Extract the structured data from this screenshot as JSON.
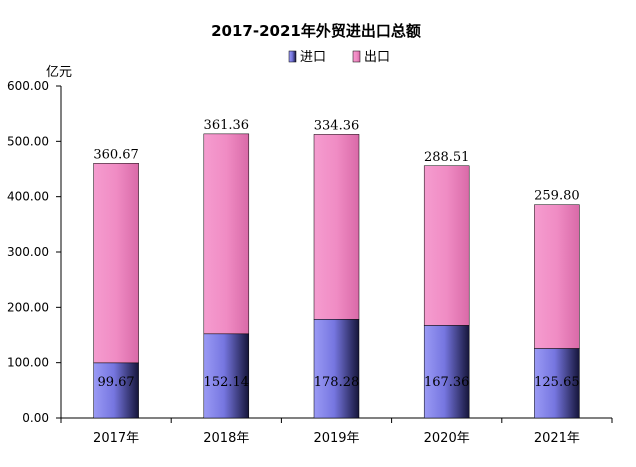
{
  "chart_data": {
    "type": "bar",
    "stacked": true,
    "title": "2017-2021年外贸进出口总额",
    "ylabel": "亿元",
    "xlabel": "",
    "categories": [
      "2017年",
      "2018年",
      "2019年",
      "2020年",
      "2021年"
    ],
    "series": [
      {
        "name": "进口",
        "values": [
          99.67,
          152.14,
          178.28,
          167.36,
          125.65
        ],
        "color": "#7c7ce8"
      },
      {
        "name": "出口",
        "values": [
          360.67,
          361.36,
          334.36,
          288.51,
          259.8
        ],
        "color": "#f08cc4"
      }
    ],
    "value_labels": [
      [
        "99.67",
        "152.14",
        "178.28",
        "167.36",
        "125.65"
      ],
      [
        "360.67",
        "361.36",
        "334.36",
        "288.51",
        "259.80"
      ]
    ],
    "ylim": [
      0,
      600
    ],
    "yticks": [
      "0.00",
      "100.00",
      "200.00",
      "300.00",
      "400.00",
      "500.00",
      "600.00"
    ],
    "legend_position": "top-center",
    "grid": false
  }
}
